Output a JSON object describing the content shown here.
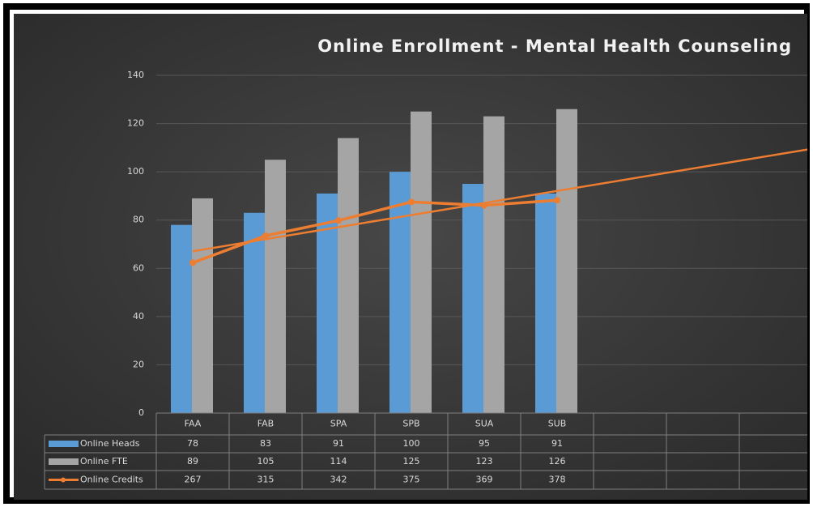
{
  "chart_data": {
    "type": "bar",
    "title": "Online  Enrollment - Mental Health Counseling",
    "categories": [
      "FAA",
      "FAB",
      "SPA",
      "SPB",
      "SUA",
      "SUB",
      null,
      null,
      null
    ],
    "series": [
      {
        "name": "Online Heads",
        "type": "bar",
        "color": "#5b9bd5",
        "values": [
          78,
          83,
          91,
          100,
          95,
          91,
          null,
          null,
          null
        ]
      },
      {
        "name": "Online FTE",
        "type": "bar",
        "color": "#a5a5a5",
        "values": [
          89,
          105,
          114,
          125,
          123,
          126,
          null,
          null,
          null
        ]
      },
      {
        "name": "Online Credits",
        "type": "line",
        "axis": "y2",
        "trendline": "linear",
        "color": "#ed7d31",
        "values": [
          267,
          315,
          342,
          375,
          369,
          378,
          null,
          null,
          null
        ]
      }
    ],
    "ylim": [
      0,
      140
    ],
    "yticks": [
      0,
      20,
      40,
      60,
      80,
      100,
      120,
      140
    ],
    "y2lim": [
      0,
      600
    ],
    "grid": true,
    "data_table": true
  }
}
